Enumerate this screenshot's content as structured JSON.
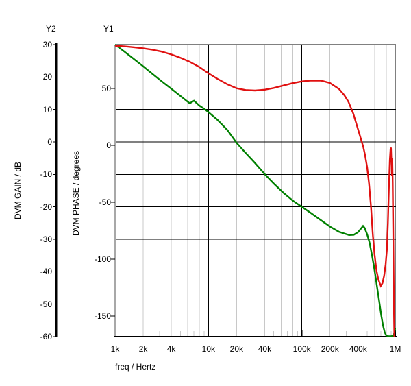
{
  "header": {
    "y2_axis_name": "Y2",
    "y1_axis_name": "Y1"
  },
  "titles": {
    "gain_axis_title": "DVM GAIN / dB",
    "phase_axis_title": "DVM PHASE / degrees",
    "x_axis_title": "freq / Hertz"
  },
  "colors": {
    "gain_curve": "#008000",
    "phase_curve": "#e01010",
    "major_grid": "#000000",
    "minor_grid": "#c8c8c8",
    "phase_axis_line": "#a8a8a8",
    "gain_axis_line": "#000000",
    "text": "#000000",
    "background": "#ffffff"
  },
  "chart_data": {
    "type": "line",
    "x_axis": {
      "label": "freq / Hertz",
      "scale": "log",
      "min": 1000,
      "max": 1000000,
      "tick_values": [
        1000,
        2000,
        4000,
        10000,
        20000,
        40000,
        100000,
        200000,
        400000,
        1000000
      ],
      "tick_labels": [
        "1k",
        "2k",
        "4k",
        "10k",
        "20k",
        "40k",
        "100k",
        "200k",
        "400k",
        "1M"
      ],
      "decades": [
        1000,
        10000,
        100000,
        1000000
      ],
      "minor_grid_multiples": [
        2,
        4,
        6,
        8
      ],
      "minor_tick_multiples": [
        3,
        5,
        7,
        9
      ],
      "grid": true
    },
    "y2_axis": {
      "name": "Y2",
      "label": "DVM GAIN / dB",
      "min": -60,
      "max": 30,
      "ticks": [
        30,
        20,
        10,
        0,
        -10,
        -20,
        -30,
        -40,
        -50,
        -60
      ],
      "grid": true
    },
    "y1_axis": {
      "name": "Y1",
      "label": "DVM PHASE / degrees",
      "min": -168.1,
      "max": 88.55,
      "ticks": [
        50,
        0,
        -50,
        -100,
        -150
      ],
      "grid": false
    },
    "series": [
      {
        "name": "DVM GAIN / dB",
        "axis": "Y2",
        "color": "#008000",
        "points": [
          [
            1000,
            30
          ],
          [
            1250,
            27.9
          ],
          [
            1600,
            25.5
          ],
          [
            2000,
            23.3
          ],
          [
            2500,
            21.0
          ],
          [
            3150,
            18.7
          ],
          [
            4000,
            16.4
          ],
          [
            5000,
            14.2
          ],
          [
            6300,
            11.9
          ],
          [
            7000,
            12.7
          ],
          [
            8000,
            11.2
          ],
          [
            9000,
            10.2
          ],
          [
            10000,
            9.2
          ],
          [
            12500,
            6.8
          ],
          [
            16000,
            3.6
          ],
          [
            20000,
            -0.3
          ],
          [
            25000,
            -3.4
          ],
          [
            31500,
            -6.5
          ],
          [
            40000,
            -9.9
          ],
          [
            50000,
            -12.8
          ],
          [
            63000,
            -15.6
          ],
          [
            80000,
            -18.1
          ],
          [
            100000,
            -20.0
          ],
          [
            125000,
            -21.9
          ],
          [
            160000,
            -24.1
          ],
          [
            200000,
            -26.1
          ],
          [
            250000,
            -27.7
          ],
          [
            320000,
            -28.7
          ],
          [
            360000,
            -28.6
          ],
          [
            400000,
            -27.8
          ],
          [
            430000,
            -26.7
          ],
          [
            452000,
            -25.9
          ],
          [
            470000,
            -26.5
          ],
          [
            500000,
            -28.5
          ],
          [
            530000,
            -31.0
          ],
          [
            560000,
            -34.5
          ],
          [
            590000,
            -38.2
          ],
          [
            620000,
            -42.2
          ],
          [
            650000,
            -46.2
          ],
          [
            680000,
            -50.0
          ],
          [
            710000,
            -53.6
          ],
          [
            740000,
            -56.6
          ],
          [
            770000,
            -58.6
          ],
          [
            800000,
            -59.6
          ],
          [
            850000,
            -59.9
          ],
          [
            900000,
            -59.9
          ],
          [
            950000,
            -59.7
          ],
          [
            975000,
            -59.0
          ],
          [
            1000000,
            -57.4
          ]
        ]
      },
      {
        "name": "DVM PHASE / degrees",
        "axis": "Y1",
        "color": "#e01010",
        "points": [
          [
            1000,
            87.6
          ],
          [
            1300,
            86.9
          ],
          [
            1600,
            86.2
          ],
          [
            2000,
            85.3
          ],
          [
            2500,
            84.1
          ],
          [
            3150,
            82.4
          ],
          [
            4000,
            79.9
          ],
          [
            5000,
            77.0
          ],
          [
            6300,
            73.4
          ],
          [
            8000,
            68.8
          ],
          [
            10000,
            63.3
          ],
          [
            12500,
            58.4
          ],
          [
            16000,
            53.6
          ],
          [
            20000,
            50.2
          ],
          [
            25000,
            48.6
          ],
          [
            31500,
            48.2
          ],
          [
            40000,
            48.9
          ],
          [
            50000,
            50.4
          ],
          [
            63000,
            52.5
          ],
          [
            80000,
            54.7
          ],
          [
            100000,
            56.2
          ],
          [
            125000,
            57.0
          ],
          [
            160000,
            56.9
          ],
          [
            200000,
            54.8
          ],
          [
            250000,
            49.6
          ],
          [
            285000,
            44.0
          ],
          [
            315000,
            38.4
          ],
          [
            355000,
            28.0
          ],
          [
            385000,
            18.5
          ],
          [
            410000,
            11.0
          ],
          [
            435000,
            4.0
          ],
          [
            455000,
            -1.5
          ],
          [
            475000,
            -8.5
          ],
          [
            500000,
            -19.5
          ],
          [
            525000,
            -34.0
          ],
          [
            550000,
            -54.0
          ],
          [
            575000,
            -78.0
          ],
          [
            600000,
            -96.0
          ],
          [
            630000,
            -110.0
          ],
          [
            660000,
            -118.0
          ],
          [
            700000,
            -123.5
          ],
          [
            730000,
            -121.0
          ],
          [
            760000,
            -114.5
          ],
          [
            790000,
            -104.5
          ],
          [
            815000,
            -91.0
          ],
          [
            835000,
            -68.0
          ],
          [
            855000,
            -38.0
          ],
          [
            875000,
            -13.0
          ],
          [
            890000,
            -3.5
          ],
          [
            900000,
            -2.0
          ],
          [
            912000,
            -16.0
          ],
          [
            920000,
            -27.0
          ],
          [
            930000,
            -11.0
          ],
          [
            940000,
            -33.0
          ],
          [
            950000,
            -72.0
          ],
          [
            960000,
            -112.0
          ],
          [
            970000,
            -148.0
          ],
          [
            978000,
            -168.5
          ],
          [
            1000000,
            -168.5
          ]
        ]
      }
    ],
    "legend": "none",
    "title": ""
  }
}
